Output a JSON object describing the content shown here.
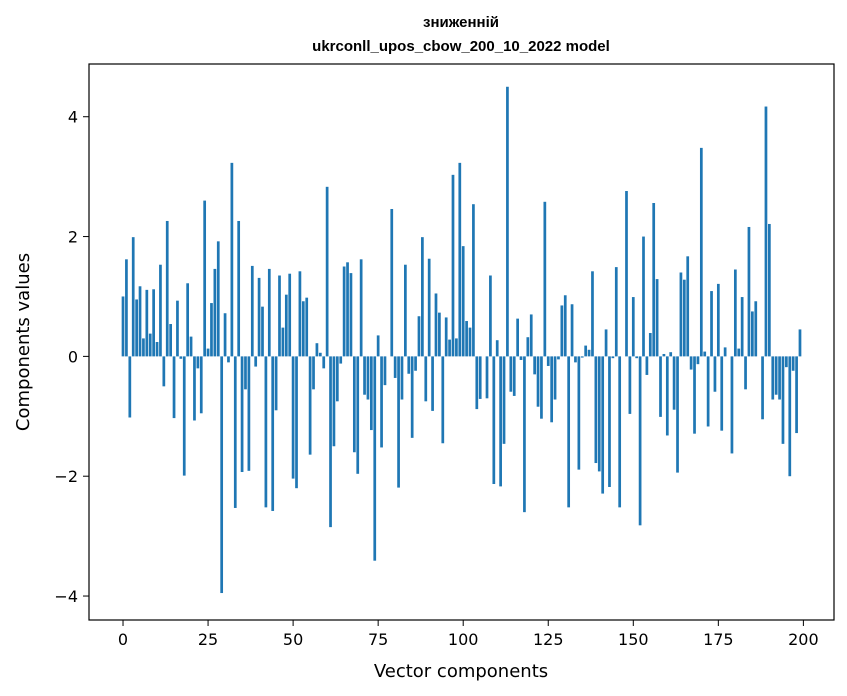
{
  "chart_data": {
    "type": "bar",
    "title_line1": "зниженній",
    "title_line2": "ukrconll_upos_cbow_200_10_2022 model",
    "xlabel": "Vector components",
    "ylabel": "Components values",
    "xlim": [
      -10,
      209
    ],
    "ylim": [
      -4.4,
      4.88
    ],
    "xticks": [
      0,
      25,
      50,
      75,
      100,
      125,
      150,
      175,
      200
    ],
    "yticks": [
      -4,
      -2,
      0,
      2,
      4
    ],
    "ytick_labels": [
      "−4",
      "−2",
      "0",
      "2",
      "4"
    ],
    "grid": false,
    "bar_color": "#1f77b4",
    "values": [
      1.0,
      1.62,
      -1.02,
      1.99,
      0.95,
      1.17,
      0.3,
      1.11,
      0.38,
      1.12,
      0.24,
      1.53,
      -0.5,
      2.26,
      0.54,
      -1.03,
      0.93,
      -0.04,
      -1.99,
      1.22,
      0.33,
      -1.07,
      -0.2,
      -0.95,
      2.6,
      0.13,
      0.89,
      1.46,
      1.92,
      -3.95,
      0.72,
      -0.1,
      3.23,
      -2.53,
      2.26,
      -1.93,
      -0.55,
      -1.91,
      1.51,
      -0.17,
      1.31,
      0.83,
      -2.52,
      1.46,
      -2.58,
      -0.9,
      1.35,
      0.48,
      1.03,
      1.38,
      -2.04,
      -2.2,
      1.42,
      0.92,
      0.98,
      -1.64,
      -0.55,
      0.22,
      0.06,
      -0.2,
      2.83,
      -2.85,
      -1.5,
      -0.75,
      -0.12,
      1.5,
      1.57,
      1.39,
      -1.6,
      -1.96,
      1.62,
      -0.64,
      -0.72,
      -1.23,
      -3.41,
      0.35,
      -1.52,
      -0.48,
      0.0,
      2.46,
      -0.36,
      -2.19,
      -0.72,
      1.53,
      -0.29,
      -1.36,
      -0.24,
      0.67,
      1.99,
      -0.75,
      1.63,
      -0.91,
      1.05,
      0.73,
      -1.45,
      0.65,
      0.28,
      3.03,
      0.3,
      3.23,
      1.84,
      0.59,
      0.48,
      2.54,
      -0.88,
      -0.71,
      0.0,
      -0.7,
      1.35,
      -2.13,
      0.27,
      -2.17,
      -1.46,
      4.5,
      -0.59,
      -0.66,
      0.63,
      -0.06,
      -2.6,
      0.32,
      0.7,
      -0.3,
      -0.84,
      -1.04,
      2.58,
      -0.16,
      -1.1,
      -0.72,
      -0.05,
      0.85,
      1.02,
      -2.52,
      0.87,
      -0.1,
      -1.89,
      -0.02,
      0.18,
      0.11,
      1.42,
      -1.78,
      -1.92,
      -2.29,
      0.45,
      -2.18,
      -0.03,
      1.49,
      -2.52,
      0.0,
      2.76,
      -0.96,
      0.99,
      -0.03,
      -2.82,
      2.0,
      -0.31,
      0.39,
      2.56,
      1.29,
      -1.01,
      0.04,
      -1.32,
      0.07,
      -0.89,
      -1.94,
      1.4,
      1.28,
      1.67,
      -0.22,
      -1.29,
      -0.13,
      3.48,
      0.08,
      -1.17,
      1.09,
      -0.59,
      1.21,
      -1.24,
      0.15,
      0.0,
      -1.62,
      1.45,
      0.13,
      0.99,
      -0.55,
      2.16,
      0.75,
      0.92,
      0.0,
      -1.05,
      4.17,
      2.21,
      -0.72,
      -0.64,
      -0.72,
      -1.46,
      -0.18,
      -2.0,
      -0.24,
      -1.28,
      0.45
    ]
  }
}
